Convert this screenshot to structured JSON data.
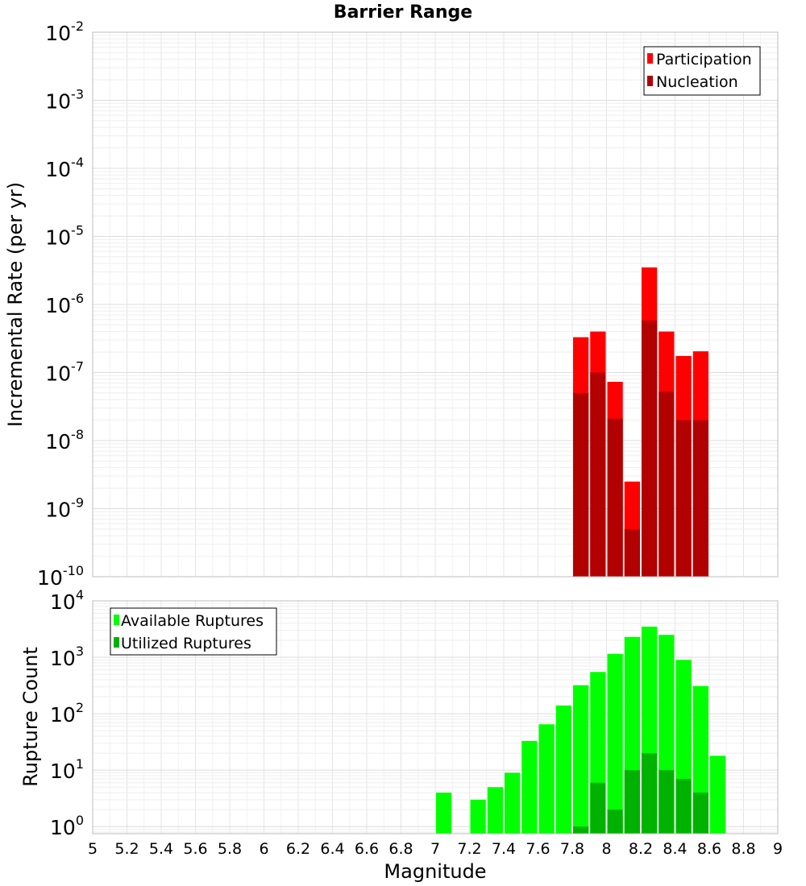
{
  "chart_data": [
    {
      "type": "bar",
      "title": "Barrier Range",
      "xlabel": "",
      "ylabel": "Incremental Rate (per yr)",
      "yscale": "log",
      "ylim": [
        1e-10,
        0.01
      ],
      "xlim": [
        5,
        9
      ],
      "grid": true,
      "legend_position": "top-right",
      "y_ticks": [
        {
          "mant": "10",
          "exp": "-10"
        },
        {
          "mant": "10",
          "exp": "-9"
        },
        {
          "mant": "10",
          "exp": "-8"
        },
        {
          "mant": "10",
          "exp": "-7"
        },
        {
          "mant": "10",
          "exp": "-6"
        },
        {
          "mant": "10",
          "exp": "-5"
        },
        {
          "mant": "10",
          "exp": "-4"
        },
        {
          "mant": "10",
          "exp": "-3"
        },
        {
          "mant": "10",
          "exp": "-2"
        }
      ],
      "bin_width": 0.1,
      "x": [
        7.85,
        7.95,
        8.05,
        8.15,
        8.25,
        8.35,
        8.45,
        8.55
      ],
      "series": [
        {
          "name": "Participation",
          "color": "#ff0000",
          "values": [
            3.3e-07,
            4e-07,
            7.3e-08,
            2.5e-09,
            3.5e-06,
            4e-07,
            1.75e-07,
            2.05e-07
          ]
        },
        {
          "name": "Nucleation",
          "color": "#b20000",
          "values": [
            5e-08,
            1e-07,
            2.1e-08,
            5e-10,
            5.8e-07,
            5.2e-08,
            2e-08,
            2e-08
          ]
        }
      ]
    },
    {
      "type": "bar",
      "title": "",
      "xlabel": "Magnitude",
      "ylabel": "Rupture Count",
      "yscale": "log",
      "ylim": [
        0.75,
        10000
      ],
      "xlim": [
        5,
        9
      ],
      "grid": true,
      "legend_position": "top-left",
      "x_ticks": [
        "5",
        "5.2",
        "5.4",
        "5.6",
        "5.8",
        "6",
        "6.2",
        "6.4",
        "6.6",
        "6.8",
        "7",
        "7.2",
        "7.4",
        "7.6",
        "7.8",
        "8",
        "8.2",
        "8.4",
        "8.6",
        "8.8",
        "9"
      ],
      "y_ticks": [
        {
          "mant": "10",
          "exp": "0"
        },
        {
          "mant": "10",
          "exp": "1"
        },
        {
          "mant": "10",
          "exp": "2"
        },
        {
          "mant": "10",
          "exp": "3"
        },
        {
          "mant": "10",
          "exp": "4"
        }
      ],
      "bin_width": 0.1,
      "series": [
        {
          "name": "Available Ruptures",
          "color": "#00ff00",
          "x": [
            7.05,
            7.25,
            7.35,
            7.45,
            7.55,
            7.65,
            7.75,
            7.85,
            7.95,
            8.05,
            8.15,
            8.25,
            8.35,
            8.45,
            8.55,
            8.65
          ],
          "values": [
            4,
            3,
            5,
            9,
            33,
            65,
            140,
            320,
            550,
            1150,
            2300,
            3500,
            2500,
            900,
            310,
            18
          ]
        },
        {
          "name": "Utilized Ruptures",
          "color": "#00b200",
          "x": [
            7.85,
            7.95,
            8.05,
            8.15,
            8.25,
            8.35,
            8.45,
            8.55
          ],
          "values": [
            1,
            6,
            2,
            10,
            20,
            10,
            7,
            4
          ]
        }
      ]
    }
  ]
}
